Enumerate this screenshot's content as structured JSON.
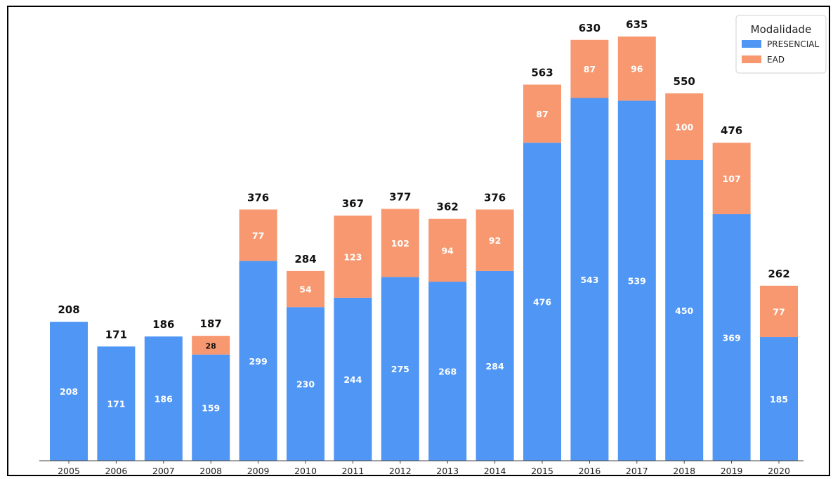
{
  "chart_data": {
    "type": "bar",
    "stacked": true,
    "categories": [
      "2005",
      "2006",
      "2007",
      "2008",
      "2009",
      "2010",
      "2011",
      "2012",
      "2013",
      "2014",
      "2015",
      "2016",
      "2017",
      "2018",
      "2019",
      "2020"
    ],
    "series": [
      {
        "name": "PRESENCIAL",
        "color": "#4f96f5",
        "values": [
          208,
          171,
          186,
          159,
          299,
          230,
          244,
          275,
          268,
          284,
          476,
          543,
          539,
          450,
          369,
          185
        ]
      },
      {
        "name": "EAD",
        "color": "#f79870",
        "values": [
          0,
          0,
          0,
          28,
          77,
          54,
          123,
          102,
          94,
          92,
          87,
          87,
          96,
          100,
          107,
          77
        ]
      }
    ],
    "totals": [
      208,
      171,
      186,
      187,
      376,
      284,
      367,
      377,
      362,
      376,
      563,
      630,
      635,
      550,
      476,
      262
    ],
    "title": "",
    "xlabel": "",
    "ylabel": "",
    "ylim": [
      0,
      635
    ],
    "grid": false,
    "legend": {
      "title": "Modalidade",
      "placement": "top-right"
    }
  }
}
